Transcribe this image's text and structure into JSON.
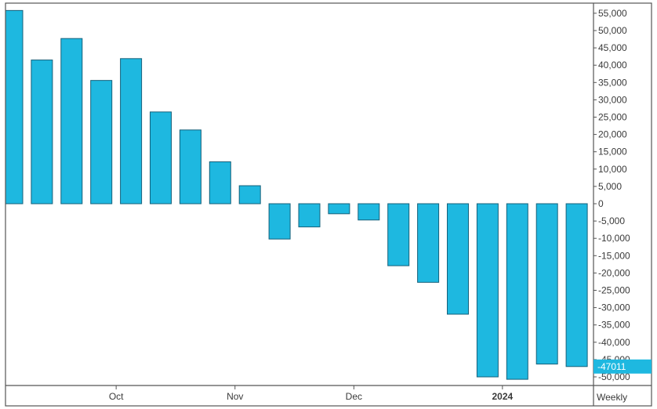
{
  "chart_data": {
    "type": "bar",
    "title": "",
    "xlabel": "",
    "ylabel": "",
    "period": "Weekly",
    "categories": [
      "",
      "",
      "",
      "",
      "",
      "",
      "",
      "",
      "",
      "",
      "",
      "",
      "",
      "",
      "",
      "",
      "",
      "",
      "",
      ""
    ],
    "values": [
      55800,
      41500,
      47700,
      35600,
      41900,
      26500,
      21300,
      12100,
      5200,
      -10200,
      -6700,
      -2900,
      -4700,
      -17900,
      -22700,
      -31900,
      -50000,
      -50700,
      -46300,
      -47011
    ],
    "x_month_labels": [
      {
        "label": "Oct",
        "after_bar": 3
      },
      {
        "label": "Nov",
        "after_bar": 7
      },
      {
        "label": "Dec",
        "after_bar": 11
      },
      {
        "label": "2024",
        "after_bar": 16,
        "bold": true
      }
    ],
    "y_ticks": [
      55000,
      50000,
      45000,
      40000,
      35000,
      30000,
      25000,
      20000,
      15000,
      10000,
      5000,
      0,
      -5000,
      -10000,
      -15000,
      -20000,
      -25000,
      -30000,
      -35000,
      -40000,
      -45000,
      -50000
    ],
    "ylim": [
      -55000,
      55000
    ],
    "last_value_label": "-47011",
    "grid": false,
    "colors": {
      "bar_fill": "#1EB8E0",
      "bar_stroke": "#16607A",
      "last_value_bg": "#1EB8E0",
      "axis": "#555555",
      "label": "#3a3a3a"
    }
  }
}
